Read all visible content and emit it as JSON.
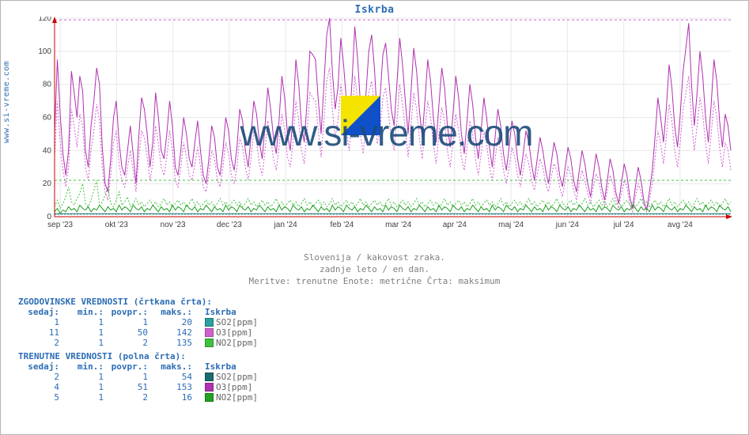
{
  "side_url": "www.si-vreme.com",
  "title": "Iskrba",
  "watermark": "www.si-vreme.com",
  "captions": {
    "line1": "Slovenija / kakovost zraka.",
    "line2": "zadnje leto / en dan.",
    "line3": "Meritve: trenutne  Enote: metrične  Črta: maksimum"
  },
  "chart": {
    "type": "line",
    "background_color": "#ffffff",
    "grid_color": "#e8e8e8",
    "frame_color": "#cc0000",
    "axis_text_color": "#404040",
    "ylim": [
      0,
      120
    ],
    "ytick_step": 20,
    "threshold_line": {
      "value": 119,
      "color": "#d060d0",
      "dash": "3,3"
    },
    "green_band": {
      "value": 22,
      "color": "#40c040"
    },
    "x_labels": [
      "sep '23",
      "okt '23",
      "nov '23",
      "dec '23",
      "jan '24",
      "feb '24",
      "mar '24",
      "apr '24",
      "maj '24",
      "jun '24",
      "jul '24",
      "avg '24"
    ],
    "series": {
      "so2": {
        "color_solid": "#1b6b6b",
        "color_dash": "#2aa0a0",
        "label": "SO2[ppm]"
      },
      "o3": {
        "color_solid": "#b030b0",
        "color_dash": "#d060d0",
        "label": "O3[ppm]"
      },
      "no2": {
        "color_solid": "#20a020",
        "color_dash": "#40c040",
        "label": "NO2[ppm]"
      }
    },
    "o3_peaks_solid": [
      50,
      95,
      62,
      38,
      25,
      40,
      88,
      75,
      60,
      85,
      76,
      40,
      30,
      55,
      70,
      90,
      80,
      42,
      20,
      15,
      35,
      60,
      70,
      45,
      30,
      25,
      40,
      55,
      38,
      20,
      48,
      72,
      65,
      50,
      30,
      45,
      75,
      60,
      40,
      35,
      50,
      70,
      55,
      30,
      25,
      40,
      60,
      50,
      35,
      30,
      45,
      58,
      40,
      25,
      20,
      35,
      55,
      48,
      30,
      25,
      40,
      60,
      52,
      35,
      28,
      42,
      65,
      58,
      40,
      30,
      48,
      70,
      62,
      45,
      35,
      55,
      78,
      65,
      48,
      38,
      58,
      85,
      72,
      50,
      40,
      62,
      95,
      80,
      55,
      45,
      70,
      100,
      98,
      95,
      70,
      50,
      80,
      110,
      120,
      88,
      65,
      78,
      108,
      92,
      70,
      55,
      82,
      115,
      95,
      68,
      52,
      75,
      100,
      110,
      90,
      60,
      72,
      98,
      105,
      85,
      65,
      55,
      80,
      108,
      92,
      70,
      50,
      75,
      102,
      88,
      65,
      48,
      70,
      95,
      82,
      60,
      45,
      68,
      90,
      78,
      55,
      42,
      62,
      85,
      72,
      50,
      38,
      58,
      80,
      68,
      48,
      35,
      52,
      72,
      60,
      42,
      30,
      48,
      65,
      55,
      38,
      28,
      42,
      58,
      50,
      35,
      25,
      38,
      52,
      45,
      32,
      22,
      35,
      48,
      40,
      28,
      20,
      32,
      45,
      38,
      25,
      18,
      30,
      42,
      35,
      22,
      15,
      28,
      40,
      32,
      20,
      12,
      25,
      38,
      30,
      18,
      10,
      22,
      35,
      28,
      15,
      8,
      20,
      32,
      25,
      12,
      5,
      18,
      30,
      22,
      10,
      4,
      15,
      28,
      48,
      72,
      60,
      45,
      65,
      92,
      78,
      55,
      42,
      62,
      88,
      102,
      117,
      80,
      55,
      75,
      100,
      85,
      60,
      45,
      68,
      95,
      82,
      58,
      42,
      62,
      55,
      40
    ],
    "o3_peaks_dash": [
      35,
      70,
      45,
      28,
      18,
      30,
      65,
      55,
      42,
      62,
      55,
      30,
      22,
      40,
      52,
      68,
      58,
      30,
      15,
      10,
      25,
      45,
      52,
      32,
      22,
      18,
      30,
      40,
      28,
      15,
      35,
      52,
      48,
      36,
      22,
      32,
      55,
      44,
      30,
      25,
      36,
      52,
      40,
      22,
      18,
      30,
      45,
      36,
      25,
      22,
      32,
      42,
      30,
      18,
      15,
      26,
      40,
      35,
      22,
      18,
      30,
      45,
      38,
      25,
      20,
      30,
      48,
      42,
      30,
      22,
      35,
      52,
      45,
      32,
      25,
      40,
      58,
      48,
      35,
      28,
      42,
      62,
      52,
      36,
      30,
      45,
      70,
      58,
      40,
      32,
      52,
      75,
      72,
      70,
      52,
      36,
      58,
      82,
      90,
      65,
      48,
      58,
      80,
      68,
      52,
      40,
      60,
      85,
      70,
      50,
      38,
      55,
      75,
      82,
      66,
      44,
      52,
      72,
      78,
      62,
      48,
      40,
      58,
      80,
      68,
      52,
      36,
      55,
      75,
      65,
      48,
      35,
      52,
      70,
      60,
      44,
      32,
      50,
      66,
      58,
      40,
      30,
      45,
      62,
      52,
      36,
      28,
      42,
      58,
      50,
      35,
      25,
      38,
      52,
      44,
      30,
      22,
      35,
      48,
      40,
      28,
      20,
      30,
      42,
      36,
      25,
      18,
      28,
      38,
      32,
      22,
      16,
      25,
      35,
      30,
      20,
      15,
      24,
      32,
      28,
      18,
      12,
      22,
      30,
      25,
      16,
      10,
      20,
      28,
      22,
      14,
      8,
      18,
      26,
      22,
      12,
      7,
      16,
      25,
      20,
      10,
      5,
      14,
      22,
      18,
      8,
      3,
      12,
      20,
      15,
      7,
      3,
      10,
      20,
      35,
      52,
      44,
      32,
      48,
      68,
      58,
      40,
      30,
      45,
      65,
      75,
      85,
      58,
      40,
      55,
      72,
      62,
      44,
      32,
      50,
      70,
      60,
      42,
      30,
      45,
      40,
      28
    ],
    "no2_solid": [
      3,
      5,
      2,
      4,
      3,
      6,
      4,
      5,
      3,
      7,
      5,
      4,
      6,
      3,
      5,
      4,
      7,
      5,
      3,
      6,
      4,
      5,
      3,
      7,
      4,
      6,
      5,
      3,
      7,
      5,
      4,
      6,
      3,
      5,
      4,
      7,
      5,
      3,
      6,
      4,
      5,
      3,
      7,
      4,
      6,
      5,
      3,
      7,
      5,
      4,
      6,
      3,
      5,
      4,
      7,
      5,
      3,
      6,
      4,
      5,
      3,
      7,
      4,
      6,
      5,
      3,
      7,
      5,
      4,
      6,
      3,
      5,
      4,
      7,
      5,
      3,
      6,
      4,
      5,
      3,
      7,
      4,
      6,
      5,
      3,
      7,
      5,
      4,
      6,
      3,
      5,
      4,
      7,
      5,
      3,
      6,
      4,
      5,
      3,
      7,
      4,
      6,
      5,
      3,
      7,
      5,
      4,
      6,
      3,
      5,
      4,
      7,
      5,
      3,
      6,
      4,
      5,
      3,
      7,
      4,
      6,
      5,
      3,
      7,
      5,
      4,
      6,
      3,
      5,
      4,
      7,
      5,
      3,
      6,
      4,
      5,
      3,
      7,
      4,
      6,
      5,
      3,
      7,
      5,
      4,
      6,
      3,
      5,
      4,
      7,
      5,
      3,
      6,
      4,
      5,
      3,
      7,
      4,
      6,
      5,
      3,
      7,
      5,
      4,
      6,
      3,
      5,
      4,
      7,
      5,
      3,
      6,
      4,
      5,
      3,
      7,
      4,
      6,
      5,
      3,
      7,
      5,
      4,
      6,
      3,
      5,
      4,
      7,
      5,
      3,
      6,
      4,
      5,
      3,
      7,
      4,
      6,
      5,
      3,
      7,
      5,
      4,
      6,
      3,
      5,
      4,
      7,
      5,
      3,
      6,
      4,
      5,
      3,
      7,
      4,
      6,
      5,
      3,
      7,
      5,
      4,
      6,
      3,
      5,
      4,
      7,
      5,
      3,
      6,
      4,
      5,
      3,
      7,
      4,
      6,
      5,
      3,
      7,
      5,
      4,
      6,
      3
    ],
    "no2_dash": [
      6,
      10,
      5,
      8,
      12,
      18,
      9,
      7,
      11,
      14,
      20,
      8,
      6,
      10,
      16,
      22,
      7,
      9,
      13,
      18,
      8,
      6,
      10,
      15,
      7,
      9,
      12,
      6,
      8,
      11,
      7,
      9,
      6,
      8,
      10,
      7,
      9,
      6,
      8,
      11,
      7,
      9,
      6,
      8,
      10,
      7,
      9,
      6,
      8,
      11,
      7,
      9,
      6,
      8,
      10,
      7,
      9,
      6,
      8,
      11,
      7,
      9,
      6,
      8,
      10,
      7,
      9,
      6,
      8,
      11,
      7,
      9,
      6,
      8,
      10,
      7,
      9,
      6,
      8,
      11,
      7,
      9,
      6,
      8,
      10,
      7,
      9,
      6,
      8,
      11,
      7,
      9,
      6,
      8,
      10,
      7,
      9,
      6,
      8,
      11,
      7,
      9,
      6,
      8,
      10,
      7,
      9,
      6,
      8,
      11,
      7,
      9,
      6,
      8,
      10,
      7,
      9,
      6,
      8,
      11,
      7,
      9,
      6,
      8,
      10,
      7,
      9,
      6,
      8,
      11,
      7,
      9,
      6,
      8,
      10,
      7,
      9,
      6,
      8,
      11,
      7,
      9,
      6,
      8,
      10,
      7,
      9,
      6,
      8,
      11,
      7,
      9,
      6,
      8,
      10,
      7,
      9,
      6,
      8,
      11,
      7,
      9,
      6,
      8,
      10,
      7,
      9,
      6,
      8,
      11,
      7,
      9,
      6,
      8,
      10,
      7,
      9,
      6,
      8,
      11,
      7,
      9,
      6,
      8,
      10,
      7,
      9,
      6,
      8,
      11,
      7,
      9,
      6,
      8,
      10,
      7,
      9,
      6,
      8,
      11,
      7,
      9,
      6,
      8,
      10,
      7,
      9,
      6,
      8,
      11,
      7,
      9,
      6,
      8,
      10,
      7,
      9,
      6,
      8,
      11,
      7,
      9,
      6,
      8,
      10,
      7,
      9,
      6,
      8,
      11,
      7,
      9,
      6,
      8,
      10,
      7,
      9,
      6,
      8,
      11,
      7,
      9
    ],
    "so2_solid_level": 1.5
  },
  "tables": {
    "hist_title": "ZGODOVINSKE VREDNOSTI (črtkana črta):",
    "curr_title": "TRENUTNE VREDNOSTI (polna črta):",
    "headers": [
      "sedaj:",
      "min.:",
      "povpr.:",
      "maks.:"
    ],
    "location": "Iskrba",
    "hist_rows": [
      {
        "vals": [
          "1",
          "1",
          "1",
          "20"
        ],
        "swatch": "#2aa0a0",
        "label": "SO2[ppm]"
      },
      {
        "vals": [
          "11",
          "1",
          "50",
          "142"
        ],
        "swatch": "#d060d0",
        "label": "O3[ppm]"
      },
      {
        "vals": [
          "2",
          "1",
          "2",
          "135"
        ],
        "swatch": "#40c040",
        "label": "NO2[ppm]"
      }
    ],
    "curr_rows": [
      {
        "vals": [
          "2",
          "1",
          "1",
          "54"
        ],
        "swatch": "#1b6b6b",
        "label": "SO2[ppm]"
      },
      {
        "vals": [
          "4",
          "1",
          "51",
          "153"
        ],
        "swatch": "#b030b0",
        "label": "O3[ppm]"
      },
      {
        "vals": [
          "5",
          "1",
          "2",
          "16"
        ],
        "swatch": "#20a020",
        "label": "NO2[ppm]"
      }
    ]
  },
  "label_fontsize": 10,
  "title_fontsize": 13
}
